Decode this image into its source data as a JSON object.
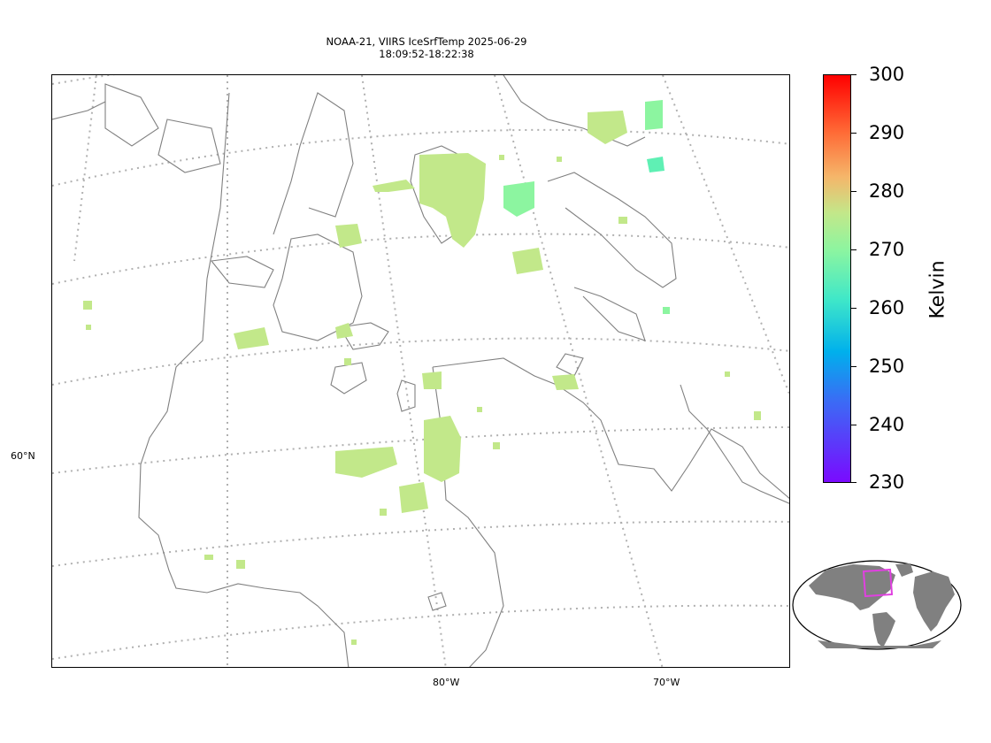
{
  "title": {
    "line1": "NOAA-21, VIIRS IceSrfTemp 2025-06-29",
    "line2": "18:09:52-18:22:38"
  },
  "lat_labels": [
    {
      "text": "60°N",
      "key": "lat60"
    }
  ],
  "lon_labels": [
    {
      "text": "80°W",
      "key": "lon80"
    },
    {
      "text": "70°W",
      "key": "lon70"
    }
  ],
  "colorbar": {
    "label": "Kelvin",
    "min": 230,
    "max": 300,
    "ticks": [
      "300",
      "290",
      "280",
      "270",
      "260",
      "250",
      "240",
      "230"
    ],
    "colormap": "rainbow"
  },
  "colors": {
    "coast": "#808080",
    "grid": "#b0b0b0",
    "data_main": "#c2e88a",
    "data_cool": "#8cf5a0",
    "data_cold": "#5ff0b4",
    "inset_land": "#808080",
    "inset_box": "#e040e0"
  }
}
